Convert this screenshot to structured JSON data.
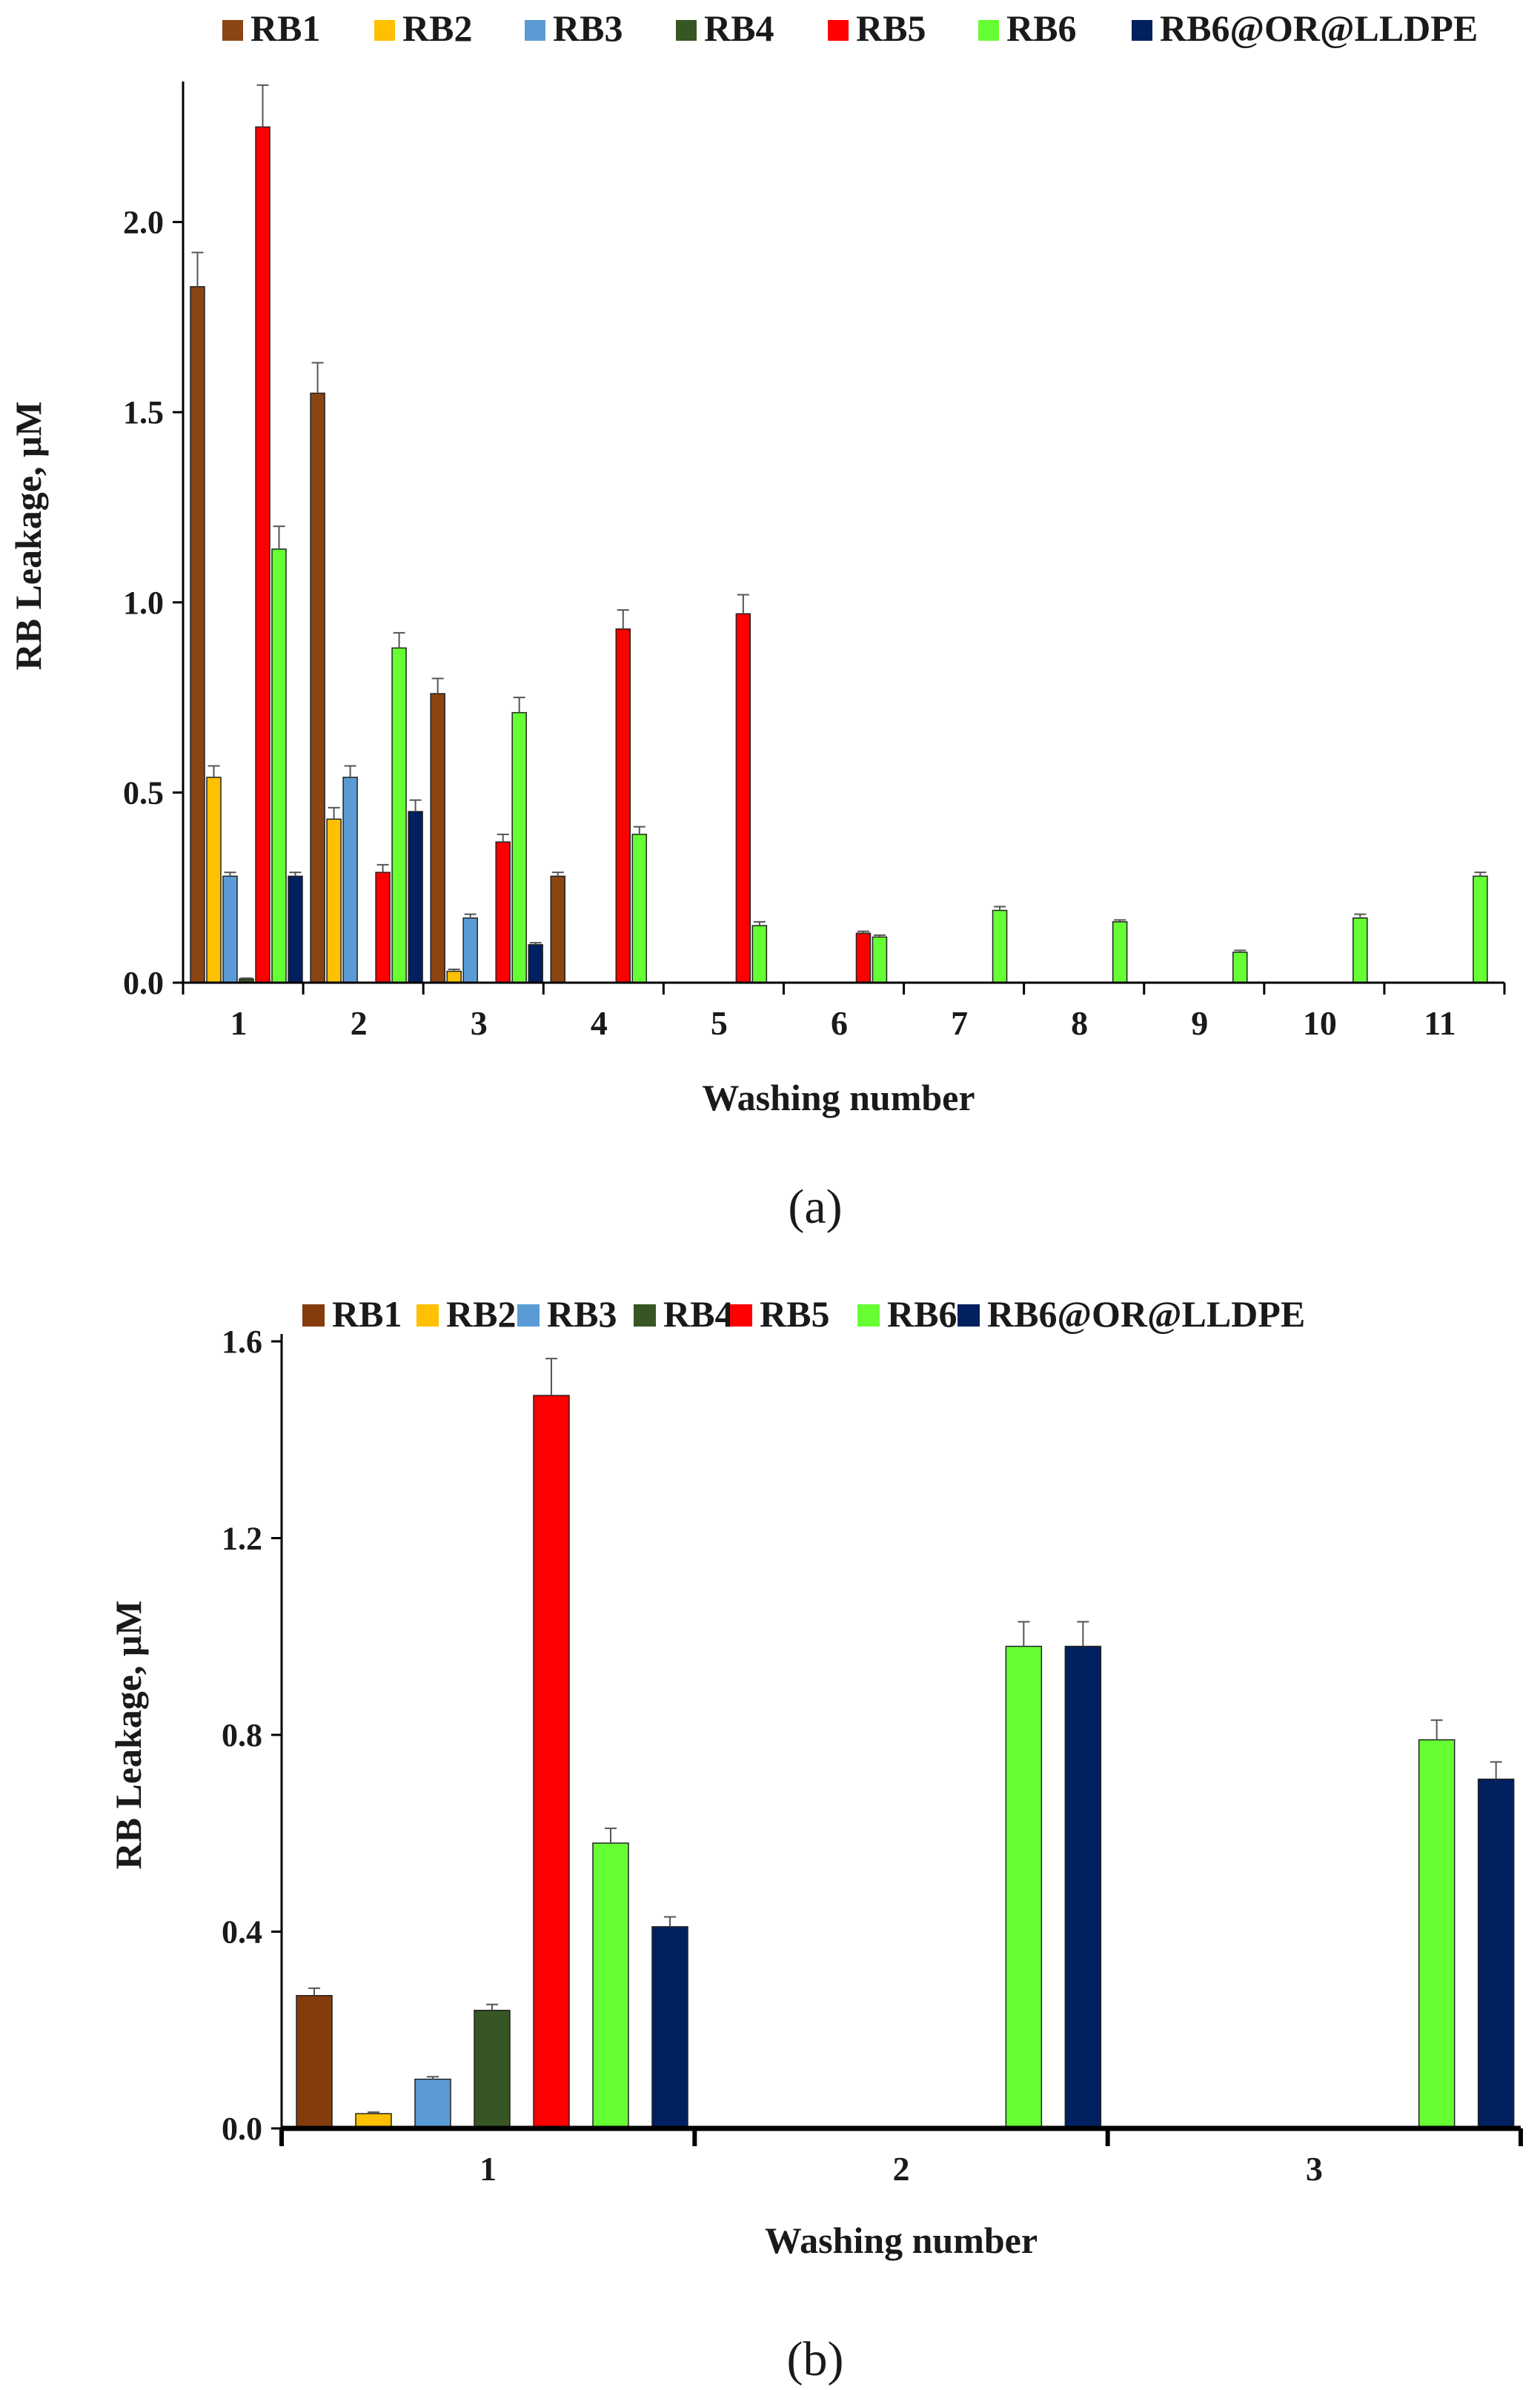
{
  "chart_data": [
    {
      "panel": "(a)",
      "type": "bar",
      "xlabel": "Washing number",
      "ylabel": "RB Leakage, μM",
      "ylim": [
        0,
        2.35
      ],
      "yticks": [
        "0.0",
        "0.5",
        "1.0",
        "1.5",
        "2.0"
      ],
      "categories": [
        "1",
        "2",
        "3",
        "4",
        "5",
        "6",
        "7",
        "8",
        "9",
        "10",
        "11"
      ],
      "legend_position": "top",
      "series": [
        {
          "name": "RB1",
          "color": "#8B4513",
          "values": [
            1.83,
            1.55,
            0.76,
            0.28,
            null,
            null,
            null,
            null,
            null,
            null,
            null
          ],
          "errors": [
            0.09,
            0.08,
            0.04,
            0.01,
            null,
            null,
            null,
            null,
            null,
            null,
            null
          ]
        },
        {
          "name": "RB2",
          "color": "#FFC000",
          "values": [
            0.54,
            0.43,
            0.03,
            null,
            null,
            null,
            null,
            null,
            null,
            null,
            null
          ],
          "errors": [
            0.03,
            0.03,
            0.005,
            null,
            null,
            null,
            null,
            null,
            null,
            null,
            null
          ]
        },
        {
          "name": "RB3",
          "color": "#5B9BD5",
          "values": [
            0.28,
            0.54,
            0.17,
            null,
            null,
            null,
            null,
            null,
            null,
            null,
            null
          ],
          "errors": [
            0.01,
            0.03,
            0.01,
            null,
            null,
            null,
            null,
            null,
            null,
            null,
            null
          ]
        },
        {
          "name": "RB4",
          "color": "#375623",
          "values": [
            0.01,
            null,
            null,
            null,
            null,
            null,
            null,
            null,
            null,
            null,
            null
          ],
          "errors": [
            0.002,
            null,
            null,
            null,
            null,
            null,
            null,
            null,
            null,
            null,
            null
          ]
        },
        {
          "name": "RB5",
          "color": "#FF0000",
          "values": [
            2.25,
            0.29,
            0.37,
            0.93,
            0.97,
            0.13,
            null,
            null,
            null,
            null,
            null
          ],
          "errors": [
            0.11,
            0.02,
            0.02,
            0.05,
            0.05,
            0.005,
            null,
            null,
            null,
            null,
            null
          ]
        },
        {
          "name": "RB6",
          "color": "#66FF33",
          "values": [
            1.14,
            0.88,
            0.71,
            0.39,
            0.15,
            0.12,
            0.19,
            0.16,
            0.08,
            0.17,
            0.28
          ],
          "errors": [
            0.06,
            0.04,
            0.04,
            0.02,
            0.01,
            0.005,
            0.01,
            0.005,
            0.005,
            0.01,
            0.01
          ]
        },
        {
          "name": "RB6@OR@LLDPE",
          "color": "#002060",
          "values": [
            0.28,
            0.45,
            0.1,
            null,
            null,
            null,
            null,
            null,
            null,
            null,
            null
          ],
          "errors": [
            0.01,
            0.03,
            0.005,
            null,
            null,
            null,
            null,
            null,
            null,
            null,
            null
          ]
        }
      ]
    },
    {
      "panel": "(b)",
      "type": "bar",
      "xlabel": "Washing number",
      "ylabel": "RB Leakage, μM",
      "ylim": [
        0,
        1.6
      ],
      "yticks": [
        "0.0",
        "0.4",
        "0.8",
        "1.2",
        "1.6"
      ],
      "categories": [
        "1",
        "2",
        "3"
      ],
      "legend_position": "top",
      "series": [
        {
          "name": "RB1",
          "color": "#843C0C",
          "values": [
            0.27,
            null,
            null
          ],
          "errors": [
            0.015,
            null,
            null
          ]
        },
        {
          "name": "RB2",
          "color": "#FFC000",
          "values": [
            0.03,
            null,
            null
          ],
          "errors": [
            0.003,
            null,
            null
          ]
        },
        {
          "name": "RB3",
          "color": "#5B9BD5",
          "values": [
            0.1,
            null,
            null
          ],
          "errors": [
            0.005,
            null,
            null
          ]
        },
        {
          "name": "RB4",
          "color": "#375623",
          "values": [
            0.24,
            null,
            null
          ],
          "errors": [
            0.012,
            null,
            null
          ]
        },
        {
          "name": "RB5",
          "color": "#FF0000",
          "values": [
            1.49,
            null,
            null
          ],
          "errors": [
            0.075,
            null,
            null
          ]
        },
        {
          "name": "RB6",
          "color": "#66FF33",
          "values": [
            0.58,
            0.98,
            0.79
          ],
          "errors": [
            0.03,
            0.05,
            0.04
          ]
        },
        {
          "name": "RB6@OR@LLDPE",
          "color": "#002060",
          "values": [
            0.41,
            0.98,
            0.71
          ],
          "errors": [
            0.02,
            0.05,
            0.035
          ]
        }
      ]
    }
  ]
}
